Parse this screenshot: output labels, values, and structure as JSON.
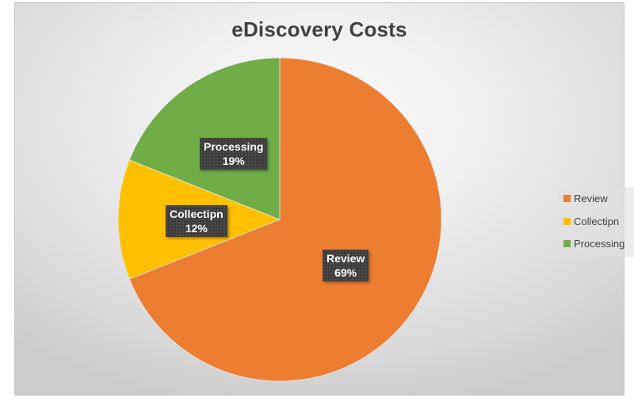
{
  "chart": {
    "title": "eDiscovery Costs",
    "legend": [
      {
        "label": "Review",
        "color": "#ED7D31"
      },
      {
        "label": "Collectipn",
        "color": "#FFC000"
      },
      {
        "label": "Processing",
        "color": "#70AD47"
      }
    ],
    "labels": [
      {
        "name": "Review",
        "pct": "69%"
      },
      {
        "name": "Collectipn",
        "pct": "12%"
      },
      {
        "name": "Processing",
        "pct": "19%"
      }
    ]
  },
  "chart_data": {
    "type": "pie",
    "title": "eDiscovery Costs",
    "categories": [
      "Review",
      "Collectipn",
      "Processing"
    ],
    "values": [
      69,
      12,
      19
    ],
    "unit": "%",
    "colors": [
      "#ED7D31",
      "#FFC000",
      "#70AD47"
    ],
    "start_angle": "12 o'clock, clockwise",
    "legend_position": "right",
    "data_labels": [
      "Review 69%",
      "Collectipn 12%",
      "Processing 19%"
    ]
  }
}
